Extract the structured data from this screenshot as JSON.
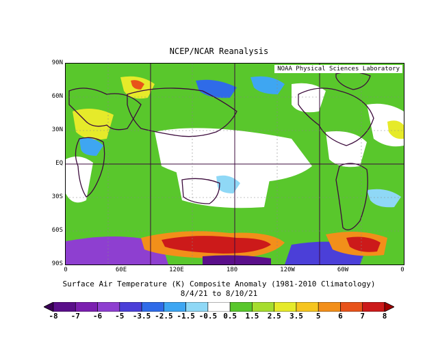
{
  "title": "NCEP/NCAR Reanalysis",
  "lab_label": "NOAA Physical Sciences Laboratory",
  "y_ticks": [
    "90N",
    "60N",
    "30N",
    "EQ",
    "30S",
    "60S",
    "90S"
  ],
  "x_ticks": [
    "0",
    "60E",
    "120E",
    "180",
    "120W",
    "60W",
    "0"
  ],
  "caption_line1": "Surface Air Temperature (K) Composite Anomaly (1981-2010 Climatology)",
  "caption_line2": "8/4/21 to 8/10/21",
  "colorbar": {
    "labels": [
      "-8",
      "-7",
      "-6",
      "-5",
      "-3.5",
      "-2.5",
      "-1.5",
      "-0.5",
      "0.5",
      "1.5",
      "2.5",
      "3.5",
      "5",
      "6",
      "7",
      "8"
    ],
    "colors": [
      "#3b0057",
      "#5a0f8a",
      "#7b1fb0",
      "#8e3fd0",
      "#4b3fd8",
      "#2f6be8",
      "#3ea6f2",
      "#8fd8f6",
      "#ffffff",
      "#59c72c",
      "#a6dd2f",
      "#e6ea2a",
      "#f6c51f",
      "#f28f1a",
      "#e8531a",
      "#cc1a1a",
      "#a00000"
    ]
  }
}
